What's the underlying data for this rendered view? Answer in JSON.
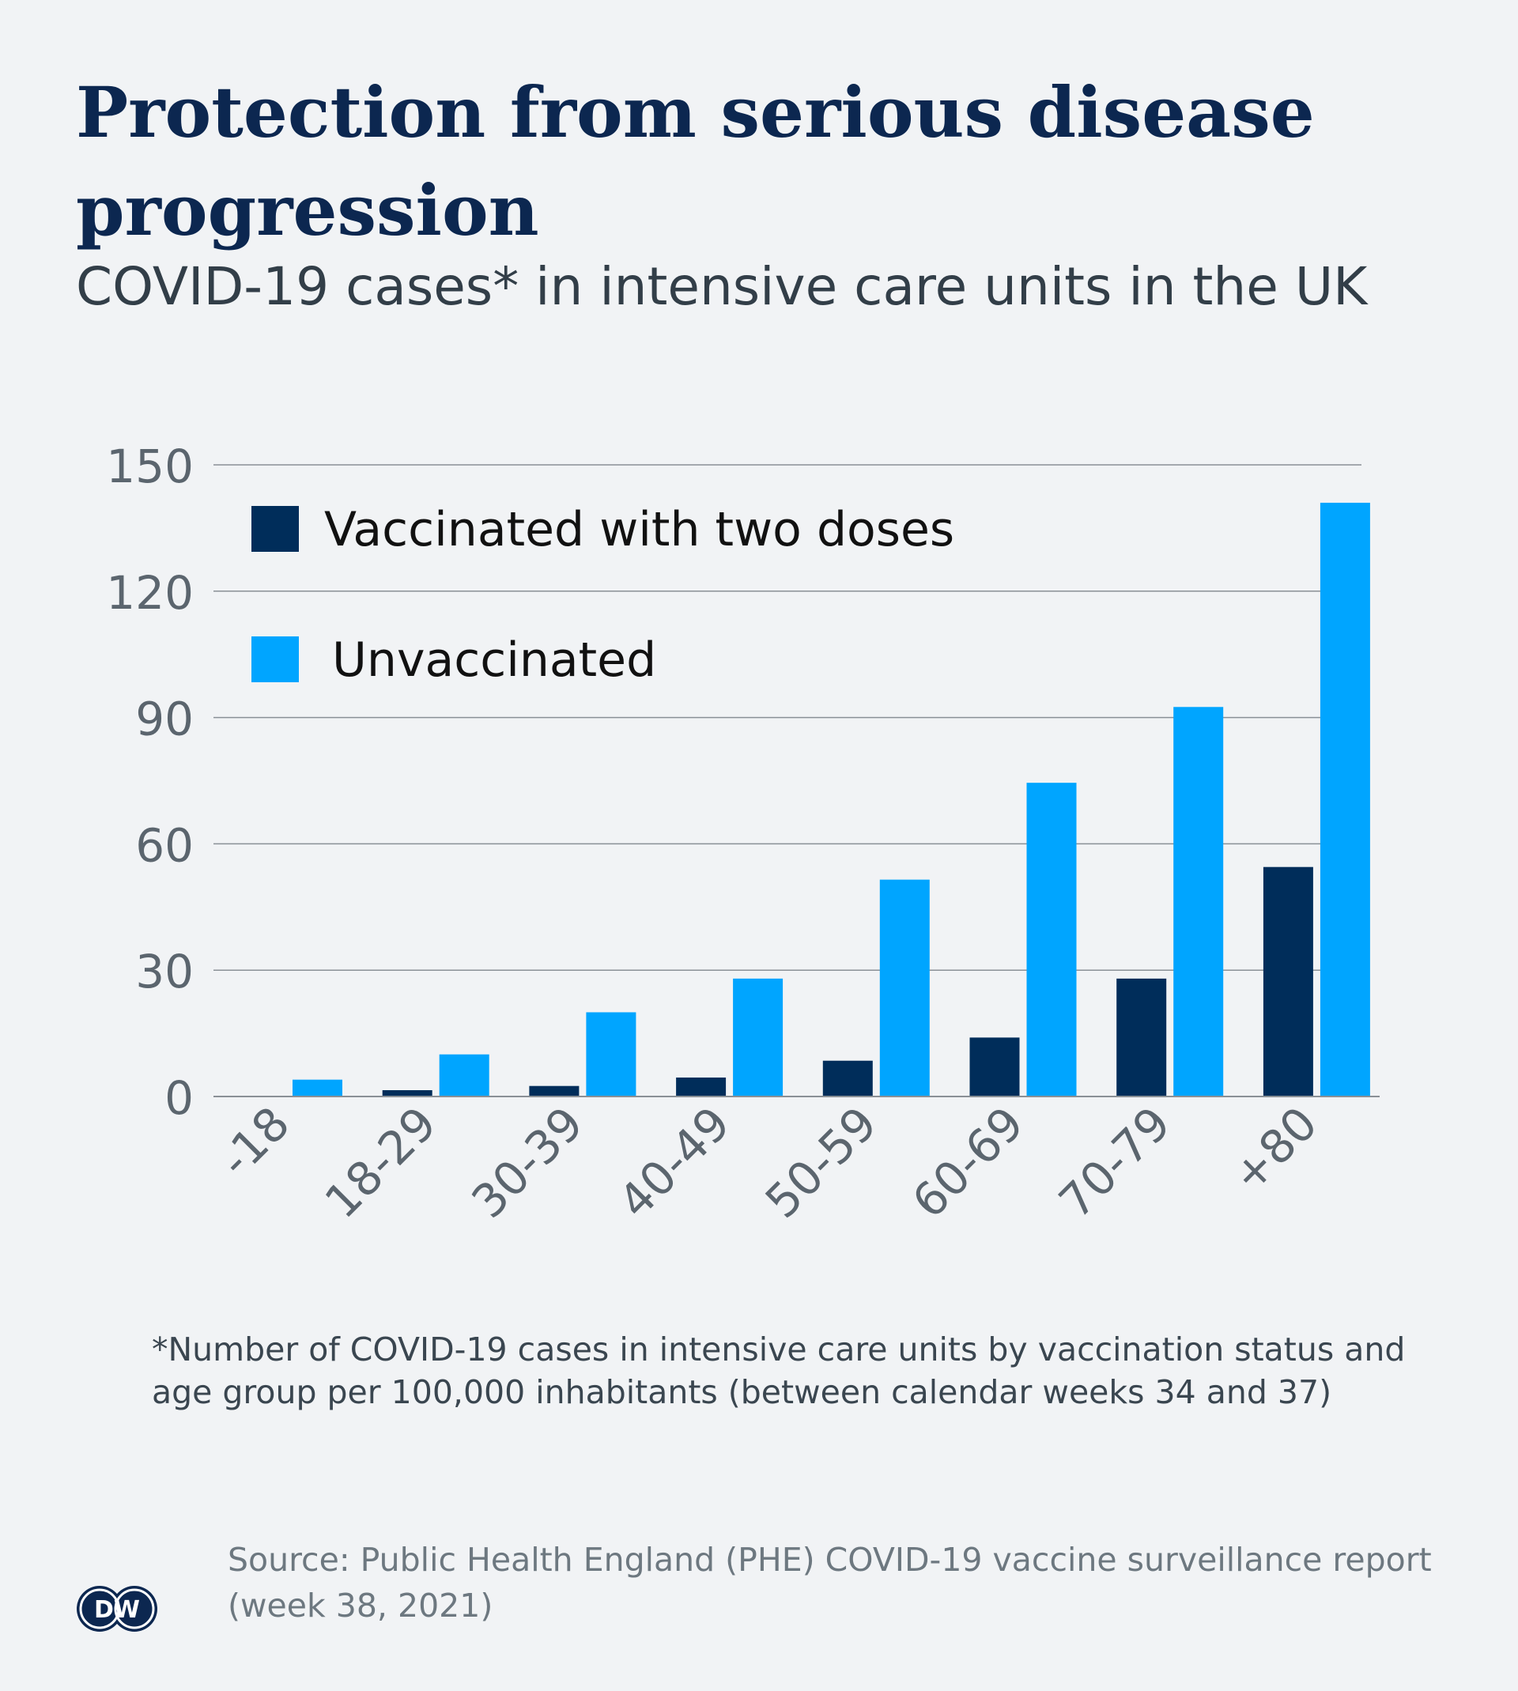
{
  "header": {
    "title": "Protection from serious disease progression",
    "subtitle": "COVID-19 cases* in intensive care units in the UK"
  },
  "footnote": "*Number of COVID-19 cases in intensive care units by vaccination status and age group per 100,000 inhabitants (between calendar weeks 34 and 37)",
  "source": "Source: Public Health England (PHE) COVID-19 vaccine surveillance report (week 38, 2021)",
  "logo": {
    "text": "DW",
    "icon": "dw-logo-icon"
  },
  "colors": {
    "background": "#f1f3f5",
    "title": "#0c2750",
    "vaccinated": "#002d5a",
    "unvaccinated": "#00a5ff",
    "grid": "#8a9096",
    "tick": "#5b656e"
  },
  "chart_data": {
    "type": "bar",
    "categories": [
      "-18",
      "18-29",
      "30-39",
      "40-49",
      "50-59",
      "60-69",
      "70-79",
      "+80"
    ],
    "series": [
      {
        "name": "Vaccinated with two doses",
        "values": [
          0.1,
          1.5,
          2.5,
          4.5,
          8.5,
          14,
          28,
          54.5
        ]
      },
      {
        "name": "Unvaccinated",
        "values": [
          4,
          10,
          20,
          28,
          51.5,
          74.5,
          92.5,
          141
        ]
      }
    ],
    "y_ticks": [
      "0",
      "30",
      "60",
      "90",
      "120",
      "150"
    ],
    "ylim": [
      0,
      150
    ],
    "xlabel": "",
    "ylabel": "",
    "grid": true,
    "legend_position": "top-left"
  }
}
